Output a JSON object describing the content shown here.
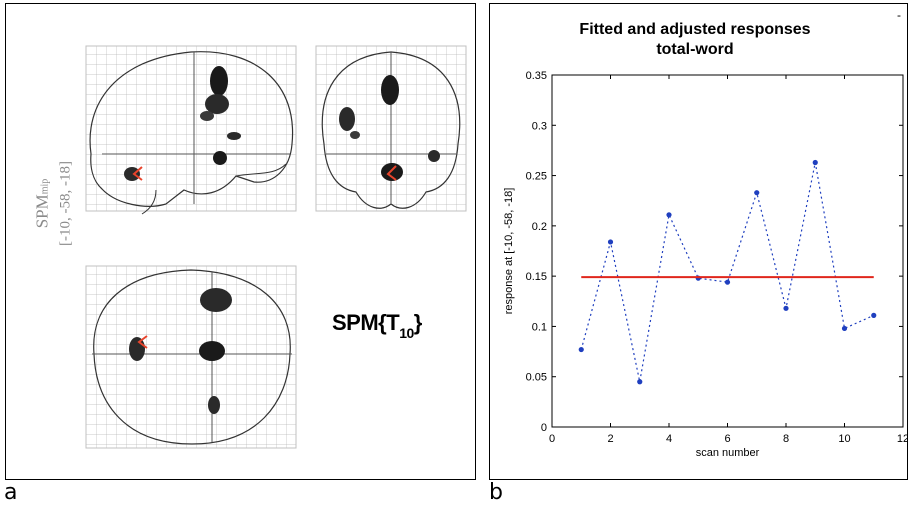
{
  "panel_a": {
    "letter": "a",
    "mip_label": "SPM",
    "mip_sub": "mip",
    "mip_coords": "[-10, -58, -18]",
    "stat_label": "SPM{T",
    "stat_sub": "10",
    "stat_close": "}",
    "marker_color": "#e8442c",
    "blob_color": "#1a1a1a"
  },
  "panel_b": {
    "letter": "b",
    "corner_mark": "-"
  },
  "chart_data": {
    "type": "line",
    "title": "Fitted and adjusted responses",
    "subtitle": "total-word",
    "xlabel": "scan number",
    "ylabel": "response at [-10, -58, -18]",
    "xlim": [
      0,
      12
    ],
    "ylim": [
      0,
      0.35
    ],
    "xticks": [
      0,
      2,
      4,
      6,
      8,
      10,
      12
    ],
    "yticks": [
      0,
      0.05,
      0.1,
      0.15,
      0.2,
      0.25,
      0.3,
      0.35
    ],
    "xtick_labels": [
      "0",
      "2",
      "4",
      "6",
      "8",
      "10",
      "12"
    ],
    "ytick_labels": [
      "0",
      "0.05",
      "0.1",
      "0.15",
      "0.2",
      "0.25",
      "0.3",
      "0.35"
    ],
    "grid": false,
    "series": [
      {
        "style": "dotted-markers",
        "color": "#1f3fbf",
        "x": [
          1,
          2,
          3,
          4,
          5,
          6,
          7,
          8,
          9,
          10,
          11
        ],
        "values": [
          0.077,
          0.184,
          0.045,
          0.211,
          0.148,
          0.144,
          0.233,
          0.118,
          0.263,
          0.098,
          0.111
        ]
      },
      {
        "style": "solid",
        "color": "#e0261c",
        "x": [
          1,
          11
        ],
        "values": [
          0.149,
          0.149
        ]
      }
    ]
  }
}
